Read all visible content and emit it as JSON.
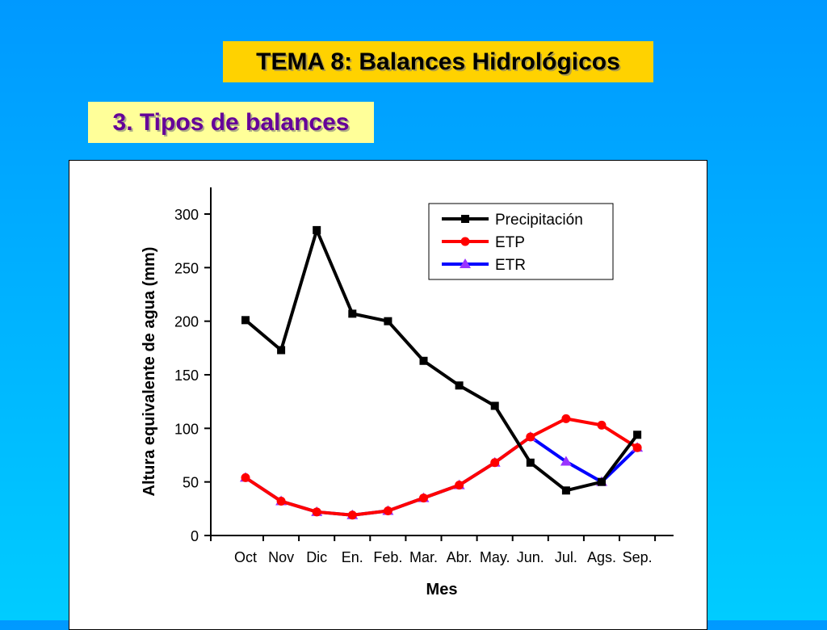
{
  "slide": {
    "title": "TEMA 8: Balances Hidrológicos",
    "subtitle": "3. Tipos de balances"
  },
  "chart_data": {
    "type": "line",
    "title": "",
    "xlabel": "Mes",
    "ylabel": "Altura equivalente de agua (mm)",
    "ylim": [
      0,
      300
    ],
    "yticks": [
      0,
      50,
      100,
      150,
      200,
      250,
      300
    ],
    "categories": [
      "Oct",
      "Nov",
      "Dic",
      "En.",
      "Feb.",
      "Mar.",
      "Abr.",
      "May.",
      "Jun.",
      "Jul.",
      "Ags.",
      "Sep."
    ],
    "legend_position": "top-right",
    "grid": false,
    "series": [
      {
        "name": "Precipitación",
        "color": "#000000",
        "marker": "square",
        "values": [
          201,
          173,
          285,
          207,
          200,
          163,
          140,
          121,
          68,
          42,
          50,
          94
        ]
      },
      {
        "name": "ETP",
        "color": "#ff0000",
        "marker": "circle",
        "values": [
          54,
          32,
          22,
          19,
          23,
          35,
          47,
          68,
          92,
          109,
          103,
          82
        ]
      },
      {
        "name": "ETR",
        "color": "#0000ff",
        "marker": "triangle",
        "marker_color": "#9933ff",
        "values": [
          54,
          32,
          22,
          19,
          23,
          35,
          47,
          68,
          92,
          69,
          50,
          82
        ]
      }
    ]
  }
}
